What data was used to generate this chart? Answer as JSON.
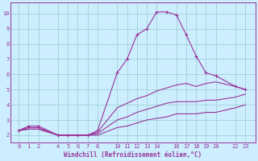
{
  "bg_color": "#cceeff",
  "line_color": "#993399",
  "grid_color": "#99cccc",
  "xlabel": "Windchill (Refroidissement éolien,°C)",
  "xlim": [
    -0.8,
    24.0
  ],
  "ylim": [
    1.5,
    10.7
  ],
  "xticks": [
    0,
    1,
    2,
    4,
    5,
    6,
    7,
    8,
    10,
    11,
    12,
    13,
    14,
    16,
    17,
    18,
    19,
    20,
    22,
    23
  ],
  "yticks": [
    2,
    3,
    4,
    5,
    6,
    7,
    8,
    9,
    10
  ],
  "series1_x": [
    0,
    1,
    2,
    4,
    5,
    6,
    7,
    8,
    10,
    11,
    12,
    13,
    14,
    15,
    16,
    17,
    18,
    19,
    20,
    22,
    23
  ],
  "series1_y": [
    2.3,
    2.6,
    2.6,
    2.0,
    2.0,
    2.0,
    2.0,
    2.3,
    6.1,
    7.0,
    8.6,
    9.0,
    10.1,
    10.1,
    9.9,
    8.6,
    7.2,
    6.1,
    5.9,
    5.2,
    5.0
  ],
  "series2_x": [
    0,
    1,
    2,
    4,
    5,
    6,
    7,
    8,
    10,
    11,
    12,
    13,
    14,
    15,
    16,
    17,
    18,
    19,
    20,
    22,
    23
  ],
  "series2_y": [
    2.3,
    2.5,
    2.5,
    2.0,
    2.0,
    2.0,
    2.0,
    2.2,
    3.8,
    4.1,
    4.4,
    4.6,
    4.9,
    5.1,
    5.3,
    5.4,
    5.2,
    5.4,
    5.5,
    5.2,
    5.0
  ],
  "series3_x": [
    0,
    1,
    2,
    4,
    5,
    6,
    7,
    8,
    10,
    11,
    12,
    13,
    14,
    15,
    16,
    17,
    18,
    19,
    20,
    22,
    23
  ],
  "series3_y": [
    2.3,
    2.4,
    2.4,
    2.0,
    2.0,
    2.0,
    2.0,
    2.1,
    3.0,
    3.2,
    3.5,
    3.7,
    3.9,
    4.1,
    4.2,
    4.2,
    4.2,
    4.3,
    4.3,
    4.5,
    4.7
  ],
  "series4_x": [
    0,
    1,
    2,
    4,
    5,
    6,
    7,
    8,
    10,
    11,
    12,
    13,
    14,
    15,
    16,
    17,
    18,
    19,
    20,
    22,
    23
  ],
  "series4_y": [
    2.3,
    2.4,
    2.4,
    2.0,
    2.0,
    2.0,
    2.0,
    2.0,
    2.5,
    2.6,
    2.8,
    3.0,
    3.1,
    3.2,
    3.4,
    3.4,
    3.4,
    3.5,
    3.5,
    3.8,
    4.0
  ]
}
